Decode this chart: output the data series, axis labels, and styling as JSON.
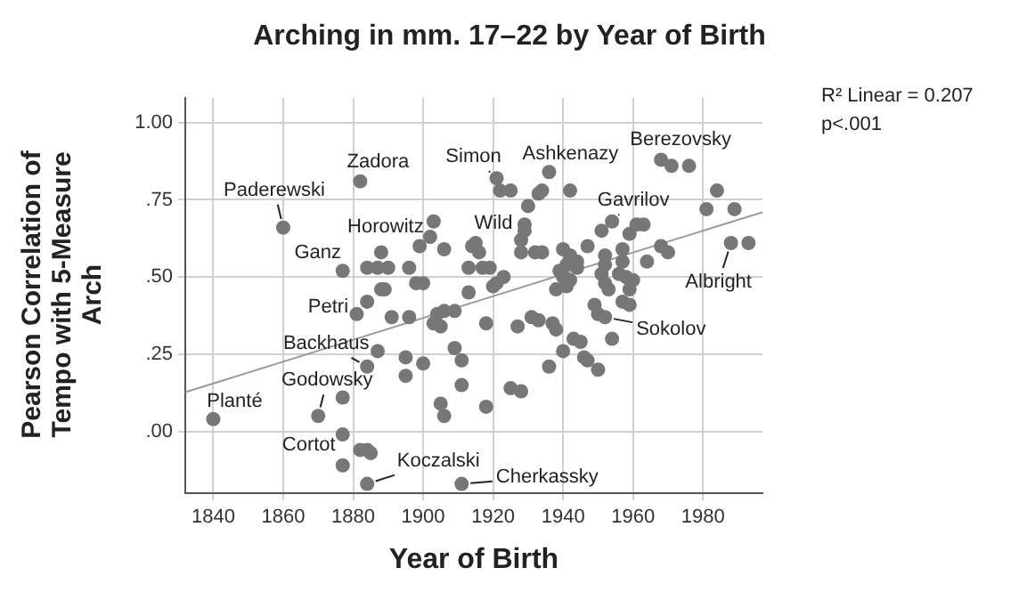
{
  "chart_data": {
    "type": "scatter",
    "title": "Arching in mm. 17–22 by Year of Birth",
    "xlabel": "Year of Birth",
    "ylabel": "Pearson Correlation of Tempo with 5-Measure Arch",
    "xlim": [
      1832,
      1997
    ],
    "xticks": [
      1840,
      1860,
      1880,
      1900,
      1920,
      1940,
      1960,
      1980
    ],
    "ylim": [
      -0.2,
      1.08
    ],
    "yticks": [
      {
        "value": 0,
        "label": ".00"
      },
      {
        "value": 0.25,
        "label": ".25"
      },
      {
        "value": 0.5,
        "label": ".50"
      },
      {
        "value": 0.75,
        "label": ".75"
      },
      {
        "value": 1,
        "label": "1.00"
      }
    ],
    "grid": true,
    "line_style": "solid",
    "series": [
      {
        "marker": "circle",
        "color": "#777777",
        "x": [
          1840,
          1860,
          1882,
          1877,
          1881,
          1884,
          1884,
          1887,
          1870,
          1877,
          1877,
          1877,
          1882,
          1884,
          1885,
          1884,
          1884,
          1887,
          1890,
          1888,
          1888,
          1889,
          1891,
          1896,
          1896,
          1898,
          1899,
          1895,
          1895,
          1900,
          1900,
          1903,
          1902,
          1906,
          1904,
          1906,
          1909,
          1903,
          1905,
          1913,
          1918,
          1927,
          1931,
          1933,
          1937,
          1938,
          1909,
          1911,
          1911,
          1905,
          1906,
          1918,
          1925,
          1928,
          1936,
          1940,
          1943,
          1945,
          1946,
          1947,
          1950,
          1954,
          1911,
          1921,
          1922,
          1925,
          1936,
          1942,
          1934,
          1933,
          1930,
          1929,
          1929,
          1915,
          1914,
          1916,
          1913,
          1917,
          1919,
          1923,
          1921,
          1920,
          1928,
          1928,
          1932,
          1934,
          1940,
          1942,
          1941,
          1939,
          1940,
          1938,
          1941,
          1942,
          1944,
          1944,
          1947,
          1951,
          1954,
          1952,
          1952,
          1951,
          1952,
          1953,
          1957,
          1957,
          1956,
          1958,
          1959,
          1949,
          1950,
          1952,
          1957,
          1959,
          1961,
          1963,
          1960,
          1959,
          1964,
          1968,
          1970,
          1968,
          1971,
          1976,
          1984,
          1981,
          1989,
          1988,
          1993
        ],
        "values": [
          0.04,
          0.66,
          0.81,
          0.52,
          0.38,
          0.42,
          0.21,
          0.26,
          0.05,
          0.11,
          -0.01,
          -0.11,
          -0.06,
          -0.06,
          -0.07,
          -0.17,
          0.53,
          0.53,
          0.53,
          0.58,
          0.46,
          0.46,
          0.37,
          0.53,
          0.37,
          0.48,
          0.6,
          0.24,
          0.18,
          0.48,
          0.22,
          0.68,
          0.63,
          0.59,
          0.38,
          0.39,
          0.39,
          0.35,
          0.34,
          0.45,
          0.35,
          0.34,
          0.37,
          0.36,
          0.35,
          0.33,
          0.27,
          0.23,
          0.15,
          0.09,
          0.05,
          0.08,
          0.14,
          0.13,
          0.21,
          0.26,
          0.3,
          0.29,
          0.24,
          0.23,
          0.2,
          0.3,
          -0.17,
          0.82,
          0.78,
          0.78,
          0.84,
          0.78,
          0.78,
          0.77,
          0.73,
          0.67,
          0.65,
          0.61,
          0.6,
          0.58,
          0.53,
          0.53,
          0.53,
          0.5,
          0.48,
          0.47,
          0.62,
          0.58,
          0.58,
          0.58,
          0.59,
          0.57,
          0.54,
          0.52,
          0.5,
          0.46,
          0.47,
          0.49,
          0.53,
          0.55,
          0.6,
          0.65,
          0.68,
          0.57,
          0.54,
          0.51,
          0.48,
          0.46,
          0.59,
          0.55,
          0.51,
          0.5,
          0.64,
          0.41,
          0.38,
          0.37,
          0.42,
          0.41,
          0.67,
          0.67,
          0.49,
          0.46,
          0.55,
          0.6,
          0.58,
          0.88,
          0.86,
          0.86,
          0.78,
          0.72,
          0.72,
          0.61,
          0.61
        ]
      },
      {
        "type": "line",
        "marker": "none",
        "color": "#999999",
        "x": [
          1832,
          1997
        ],
        "values": [
          0.127,
          0.71
        ]
      }
    ],
    "annotations": [
      "R² Linear = 0.207",
      "p<.001",
      {
        "text": "Planté",
        "x": 1840,
        "y": 0.04
      },
      {
        "text": "Paderewski",
        "x": 1860,
        "y": 0.66
      },
      {
        "text": "Zadora",
        "x": 1882,
        "y": 0.81
      },
      {
        "text": "Ganz",
        "x": 1877,
        "y": 0.52
      },
      {
        "text": "Petri",
        "x": 1881,
        "y": 0.38
      },
      {
        "text": "Backhaus",
        "x": 1884,
        "y": 0.21
      },
      {
        "text": "Godowsky",
        "x": 1870,
        "y": 0.05
      },
      {
        "text": "Cortot",
        "x": 1877,
        "y": -0.01
      },
      {
        "text": "Koczalski",
        "x": 1884,
        "y": -0.17
      },
      {
        "text": "Horowitz",
        "x": 1903,
        "y": 0.68
      },
      {
        "text": "Wild",
        "x": 1915,
        "y": 0.61
      },
      {
        "text": "Simon",
        "x": 1921,
        "y": 0.82
      },
      {
        "text": "Ashkenazy",
        "x": 1936,
        "y": 0.84
      },
      {
        "text": "Gavrilov",
        "x": 1954,
        "y": 0.68
      },
      {
        "text": "Berezovsky",
        "x": 1968,
        "y": 0.88
      },
      {
        "text": "Albright",
        "x": 1988,
        "y": 0.61
      },
      {
        "text": "Sokolov",
        "x": 1952,
        "y": 0.37
      },
      {
        "text": "Cherkassky",
        "x": 1911,
        "y": -0.17
      }
    ]
  }
}
